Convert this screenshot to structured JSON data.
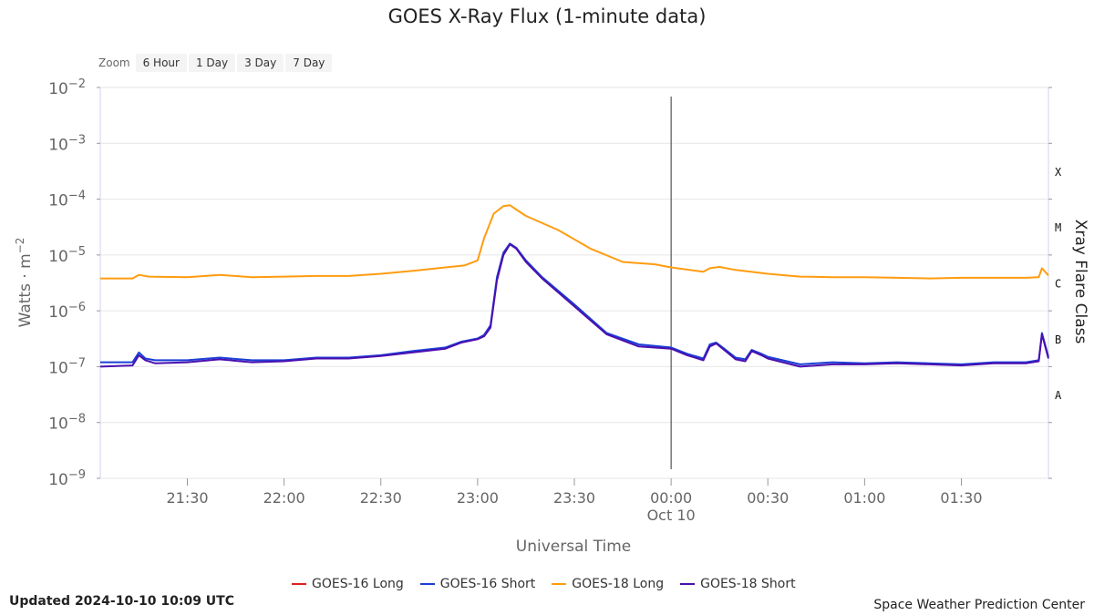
{
  "title": "GOES X-Ray Flux (1-minute data)",
  "zoom": {
    "label": "Zoom",
    "buttons": [
      "6 Hour",
      "1 Day",
      "3 Day",
      "7 Day"
    ]
  },
  "footer": {
    "updated": "Updated 2024-10-10 10:09 UTC",
    "credit": "Space Weather Prediction Center"
  },
  "chart_data": {
    "type": "line",
    "title": "GOES X-Ray Flux (1-minute data)",
    "xlabel": "Universal Time",
    "ylabel": "Watts · m",
    "ylabel_sup": "-2",
    "y2label": "Xray Flare Class",
    "y_scale": "log",
    "ylim_exp": [
      -9,
      -2
    ],
    "y_ticks": [
      {
        "exp": -2,
        "base": "10",
        "sup": "-2"
      },
      {
        "exp": -3,
        "base": "10",
        "sup": "-3"
      },
      {
        "exp": -4,
        "base": "10",
        "sup": "-4"
      },
      {
        "exp": -5,
        "base": "10",
        "sup": "-5"
      },
      {
        "exp": -6,
        "base": "10",
        "sup": "-6"
      },
      {
        "exp": -7,
        "base": "10",
        "sup": "-7"
      },
      {
        "exp": -8,
        "base": "10",
        "sup": "-8"
      },
      {
        "exp": -9,
        "base": "10",
        "sup": "-9"
      }
    ],
    "flare_classes": [
      {
        "label": "X",
        "exp": -3.5
      },
      {
        "label": "M",
        "exp": -4.5
      },
      {
        "label": "C",
        "exp": -5.5
      },
      {
        "label": "B",
        "exp": -6.5
      },
      {
        "label": "A",
        "exp": -7.5
      }
    ],
    "xlim": [
      "2024-10-09 21:03",
      "2024-10-10 01:57"
    ],
    "x_ticks": [
      {
        "time": "2024-10-09 21:30",
        "label": "21:30"
      },
      {
        "time": "2024-10-09 22:00",
        "label": "22:00"
      },
      {
        "time": "2024-10-09 22:30",
        "label": "22:30"
      },
      {
        "time": "2024-10-09 23:00",
        "label": "23:00"
      },
      {
        "time": "2024-10-09 23:30",
        "label": "23:30"
      },
      {
        "time": "2024-10-10 00:00",
        "label": "00:00",
        "sublabel": "Oct 10"
      },
      {
        "time": "2024-10-10 00:30",
        "label": "00:30"
      },
      {
        "time": "2024-10-10 01:00",
        "label": "01:00"
      },
      {
        "time": "2024-10-10 01:30",
        "label": "01:30"
      }
    ],
    "day_marker": "2024-10-10 00:00",
    "grid": true,
    "legend_position": "bottom-center",
    "series": [
      {
        "name": "GOES-16 Long",
        "color": "#e01f1f",
        "x": [],
        "values": []
      },
      {
        "name": "GOES-16 Short",
        "color": "#1a3fd6",
        "x": [
          "2024-10-09 21:03",
          "2024-10-09 21:13",
          "2024-10-09 21:15",
          "2024-10-09 21:17",
          "2024-10-09 21:20",
          "2024-10-09 21:30",
          "2024-10-09 21:40",
          "2024-10-09 21:50",
          "2024-10-09 22:00",
          "2024-10-09 22:10",
          "2024-10-09 22:20",
          "2024-10-09 22:30",
          "2024-10-09 22:40",
          "2024-10-09 22:50",
          "2024-10-09 22:55",
          "2024-10-09 23:00",
          "2024-10-09 23:02",
          "2024-10-09 23:04",
          "2024-10-09 23:06",
          "2024-10-09 23:08",
          "2024-10-09 23:10",
          "2024-10-09 23:12",
          "2024-10-09 23:15",
          "2024-10-09 23:20",
          "2024-10-09 23:30",
          "2024-10-09 23:40",
          "2024-10-09 23:50",
          "2024-10-10 00:00",
          "2024-10-10 00:05",
          "2024-10-10 00:10",
          "2024-10-10 00:12",
          "2024-10-10 00:14",
          "2024-10-10 00:16",
          "2024-10-10 00:20",
          "2024-10-10 00:23",
          "2024-10-10 00:25",
          "2024-10-10 00:28",
          "2024-10-10 00:30",
          "2024-10-10 00:40",
          "2024-10-10 00:50",
          "2024-10-10 01:00",
          "2024-10-10 01:10",
          "2024-10-10 01:20",
          "2024-10-10 01:30",
          "2024-10-10 01:40",
          "2024-10-10 01:50",
          "2024-10-10 01:54",
          "2024-10-10 01:55",
          "2024-10-10 01:57"
        ],
        "values": [
          1.2e-07,
          1.2e-07,
          1.8e-07,
          1.4e-07,
          1.3e-07,
          1.3e-07,
          1.45e-07,
          1.3e-07,
          1.3e-07,
          1.45e-07,
          1.45e-07,
          1.6e-07,
          1.9e-07,
          2.2e-07,
          2.8e-07,
          3.2e-07,
          3.7e-07,
          5.5e-07,
          4e-06,
          1.1e-05,
          1.6e-05,
          1.35e-05,
          8e-06,
          4e-06,
          1.3e-06,
          4e-07,
          2.5e-07,
          2.2e-07,
          1.7e-07,
          1.4e-07,
          2.5e-07,
          2.7e-07,
          2.2e-07,
          1.45e-07,
          1.35e-07,
          2e-07,
          1.7e-07,
          1.5e-07,
          1.1e-07,
          1.2e-07,
          1.15e-07,
          1.2e-07,
          1.15e-07,
          1.1e-07,
          1.2e-07,
          1.2e-07,
          1.3e-07,
          4e-07,
          1.5e-07
        ]
      },
      {
        "name": "GOES-18 Long",
        "color": "#ff9c10",
        "x": [
          "2024-10-09 21:03",
          "2024-10-09 21:13",
          "2024-10-09 21:15",
          "2024-10-09 21:18",
          "2024-10-09 21:30",
          "2024-10-09 21:40",
          "2024-10-09 21:50",
          "2024-10-09 22:00",
          "2024-10-09 22:10",
          "2024-10-09 22:20",
          "2024-10-09 22:30",
          "2024-10-09 22:40",
          "2024-10-09 22:50",
          "2024-10-09 22:56",
          "2024-10-09 23:00",
          "2024-10-09 23:02",
          "2024-10-09 23:05",
          "2024-10-09 23:08",
          "2024-10-09 23:10",
          "2024-10-09 23:12",
          "2024-10-09 23:15",
          "2024-10-09 23:25",
          "2024-10-09 23:35",
          "2024-10-09 23:45",
          "2024-10-09 23:55",
          "2024-10-10 00:00",
          "2024-10-10 00:10",
          "2024-10-10 00:12",
          "2024-10-10 00:15",
          "2024-10-10 00:20",
          "2024-10-10 00:30",
          "2024-10-10 00:40",
          "2024-10-10 00:50",
          "2024-10-10 01:00",
          "2024-10-10 01:10",
          "2024-10-10 01:20",
          "2024-10-10 01:30",
          "2024-10-10 01:40",
          "2024-10-10 01:50",
          "2024-10-10 01:54",
          "2024-10-10 01:55",
          "2024-10-10 01:57"
        ],
        "values": [
          3.8e-06,
          3.8e-06,
          4.4e-06,
          4.1e-06,
          4e-06,
          4.4e-06,
          4e-06,
          4.1e-06,
          4.2e-06,
          4.2e-06,
          4.6e-06,
          5.2e-06,
          6e-06,
          6.5e-06,
          8e-06,
          2e-05,
          5.5e-05,
          7.5e-05,
          7.8e-05,
          6.5e-05,
          5e-05,
          2.8e-05,
          1.3e-05,
          7.5e-06,
          6.8e-06,
          6e-06,
          5e-06,
          5.8e-06,
          6.1e-06,
          5.4e-06,
          4.6e-06,
          4.1e-06,
          4e-06,
          4e-06,
          3.9e-06,
          3.8e-06,
          3.9e-06,
          3.9e-06,
          3.9e-06,
          4e-06,
          5.8e-06,
          4.3e-06
        ]
      },
      {
        "name": "GOES-18 Short",
        "color": "#4b0fb0",
        "x": [
          "2024-10-09 21:03",
          "2024-10-09 21:13",
          "2024-10-09 21:15",
          "2024-10-09 21:17",
          "2024-10-09 21:20",
          "2024-10-09 21:30",
          "2024-10-09 21:40",
          "2024-10-09 21:50",
          "2024-10-09 22:00",
          "2024-10-09 22:10",
          "2024-10-09 22:20",
          "2024-10-09 22:30",
          "2024-10-09 22:40",
          "2024-10-09 22:50",
          "2024-10-09 22:55",
          "2024-10-09 23:00",
          "2024-10-09 23:02",
          "2024-10-09 23:04",
          "2024-10-09 23:06",
          "2024-10-09 23:08",
          "2024-10-09 23:10",
          "2024-10-09 23:12",
          "2024-10-09 23:15",
          "2024-10-09 23:20",
          "2024-10-09 23:30",
          "2024-10-09 23:40",
          "2024-10-09 23:50",
          "2024-10-10 00:00",
          "2024-10-10 00:05",
          "2024-10-10 00:10",
          "2024-10-10 00:12",
          "2024-10-10 00:14",
          "2024-10-10 00:16",
          "2024-10-10 00:20",
          "2024-10-10 00:23",
          "2024-10-10 00:25",
          "2024-10-10 00:28",
          "2024-10-10 00:30",
          "2024-10-10 00:40",
          "2024-10-10 00:50",
          "2024-10-10 01:00",
          "2024-10-10 01:10",
          "2024-10-10 01:20",
          "2024-10-10 01:30",
          "2024-10-10 01:40",
          "2024-10-10 01:50",
          "2024-10-10 01:54",
          "2024-10-10 01:55",
          "2024-10-10 01:57"
        ],
        "values": [
          1e-07,
          1.05e-07,
          1.6e-07,
          1.3e-07,
          1.15e-07,
          1.2e-07,
          1.35e-07,
          1.2e-07,
          1.25e-07,
          1.4e-07,
          1.4e-07,
          1.55e-07,
          1.8e-07,
          2.1e-07,
          2.7e-07,
          3.1e-07,
          3.5e-07,
          5e-07,
          3.5e-06,
          1e-05,
          1.55e-05,
          1.3e-05,
          7.5e-06,
          3.8e-06,
          1.2e-06,
          3.8e-07,
          2.3e-07,
          2.1e-07,
          1.6e-07,
          1.3e-07,
          2.3e-07,
          2.6e-07,
          2.1e-07,
          1.35e-07,
          1.25e-07,
          1.9e-07,
          1.6e-07,
          1.4e-07,
          1e-07,
          1.1e-07,
          1.1e-07,
          1.15e-07,
          1.1e-07,
          1.05e-07,
          1.15e-07,
          1.15e-07,
          1.25e-07,
          3.8e-07,
          1.4e-07
        ]
      }
    ]
  }
}
